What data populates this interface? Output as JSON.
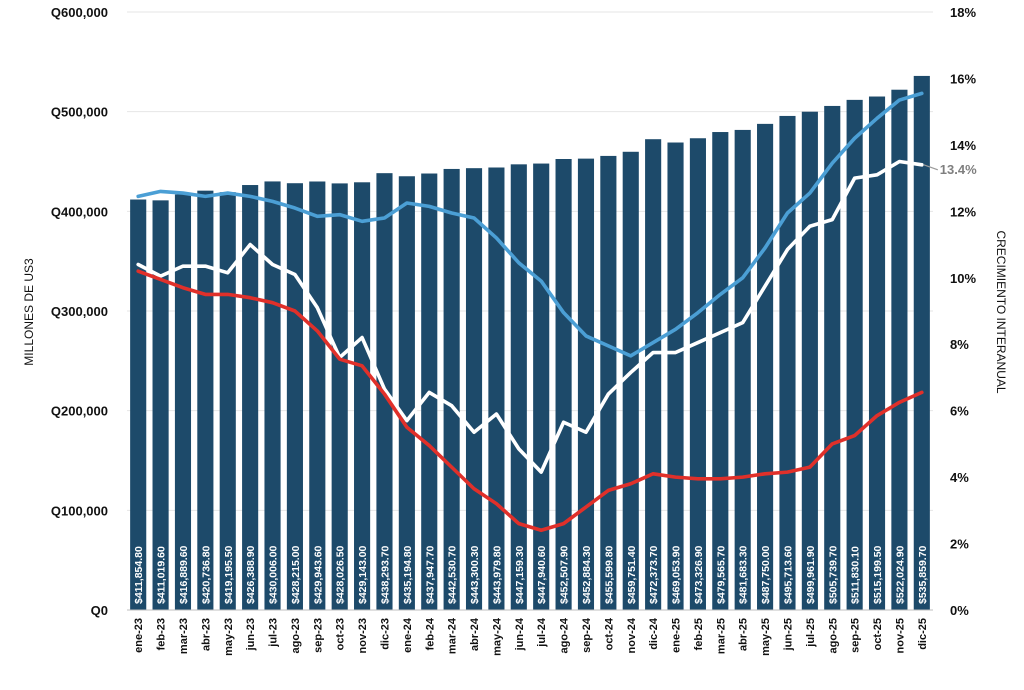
{
  "chart_data": {
    "type": "bar",
    "categories": [
      "ene-23",
      "feb-23",
      "mar-23",
      "abr-23",
      "may-23",
      "jun-23",
      "jul-23",
      "ago-23",
      "sep-23",
      "oct-23",
      "nov-23",
      "dic-23",
      "ene-24",
      "feb-24",
      "mar-24",
      "abr-24",
      "may-24",
      "jun-24",
      "jul-24",
      "ago-24",
      "sep-24",
      "oct-24",
      "nov-24",
      "dic-24",
      "ene-25",
      "feb-25",
      "mar-25",
      "abr-25",
      "may-25",
      "jun-25",
      "jul-25",
      "ago-25",
      "sep-25",
      "oct-25",
      "nov-25",
      "dic-25"
    ],
    "bar_series": {
      "name": "Millones de US3",
      "axis": "left",
      "color": "#1d4a6a",
      "values": [
        411854.8,
        411019.6,
        416889.6,
        420736.8,
        419195.5,
        426388.9,
        430006.0,
        428215.0,
        429943.6,
        428026.5,
        429143.0,
        438293.7,
        435194.8,
        437947.7,
        442530.7,
        443300.3,
        443979.8,
        447159.3,
        447940.6,
        452507.9,
        452884.3,
        455599.8,
        459751.4,
        472373.7,
        469053.9,
        473326.9,
        479565.7,
        481683.3,
        487750.0,
        495713.6,
        499961.9,
        505739.7,
        511830.1,
        515199.5,
        522024.9,
        535859.7
      ],
      "labels": [
        "$411,854.80",
        "$411,019.60",
        "$416,889.60",
        "$420,736.80",
        "$419,195.50",
        "$426,388.90",
        "$430,006.00",
        "$428,215.00",
        "$429,943.60",
        "$428,026.50",
        "$429,143.00",
        "$438,293.70",
        "$435,194.80",
        "$437,947.70",
        "$442,530.70",
        "$443,300.30",
        "$443,979.80",
        "$447,159.30",
        "$447,940.60",
        "$452,507.90",
        "$452,884.30",
        "$455,599.80",
        "$459,751.40",
        "$472,373.70",
        "$469,053.90",
        "$473,326.90",
        "$479,565.70",
        "$481,683.30",
        "$487,750.00",
        "$495,713.60",
        "$499,961.90",
        "$505,739.70",
        "$511,830.10",
        "$515,199.50",
        "$522,024.90",
        "$535,859.70"
      ]
    },
    "line_series": [
      {
        "name": "Crecimiento interanual (celeste)",
        "axis": "right",
        "color": "#4b9fd5",
        "values": [
          12.45,
          12.6,
          12.55,
          12.45,
          12.55,
          12.45,
          12.3,
          12.1,
          11.85,
          11.9,
          11.7,
          11.8,
          12.25,
          12.15,
          11.95,
          11.8,
          11.2,
          10.45,
          9.9,
          8.95,
          8.25,
          7.95,
          7.65,
          8.05,
          8.45,
          8.95,
          9.5,
          10.0,
          10.9,
          11.95,
          12.55,
          13.45,
          14.2,
          14.8,
          15.35,
          15.55
        ]
      },
      {
        "name": "Crecimiento interanual (blanco)",
        "axis": "right",
        "color": "#ffffff",
        "values": [
          10.4,
          10.05,
          10.35,
          10.35,
          10.15,
          11.0,
          10.4,
          10.1,
          9.1,
          7.6,
          8.2,
          6.65,
          5.7,
          6.55,
          6.15,
          5.35,
          5.9,
          4.85,
          4.15,
          5.65,
          5.35,
          6.5,
          7.15,
          7.75,
          7.75,
          8.05,
          8.35,
          8.65,
          9.75,
          10.85,
          11.55,
          11.75,
          13.0,
          13.1,
          13.5,
          13.4
        ]
      },
      {
        "name": "Crecimiento interanual (rojo)",
        "axis": "right",
        "color": "#e0302a",
        "values": [
          10.2,
          9.95,
          9.7,
          9.5,
          9.5,
          9.4,
          9.25,
          9.0,
          8.4,
          7.55,
          7.35,
          6.5,
          5.5,
          4.95,
          4.3,
          3.65,
          3.2,
          2.6,
          2.4,
          2.6,
          3.1,
          3.6,
          3.8,
          4.1,
          4.0,
          3.95,
          3.95,
          4.0,
          4.1,
          4.15,
          4.3,
          5.0,
          5.25,
          5.85,
          6.25,
          6.55
        ]
      }
    ],
    "y_left": {
      "label": "MILLONES DE US3",
      "range": [
        0,
        600000
      ],
      "ticks": [
        "Q0",
        "Q100,000",
        "Q200,000",
        "Q300,000",
        "Q400,000",
        "Q500,000",
        "Q600,000"
      ]
    },
    "y_right": {
      "label": "CRECIMIENTO INTERANUAL",
      "range": [
        0,
        18
      ],
      "ticks": [
        "0%",
        "2%",
        "4%",
        "6%",
        "8%",
        "10%",
        "12%",
        "14%",
        "16%",
        "18%"
      ]
    },
    "annotation": {
      "text": "13.4%",
      "series": 1,
      "index": 35
    },
    "grid": true,
    "legend": "none"
  }
}
